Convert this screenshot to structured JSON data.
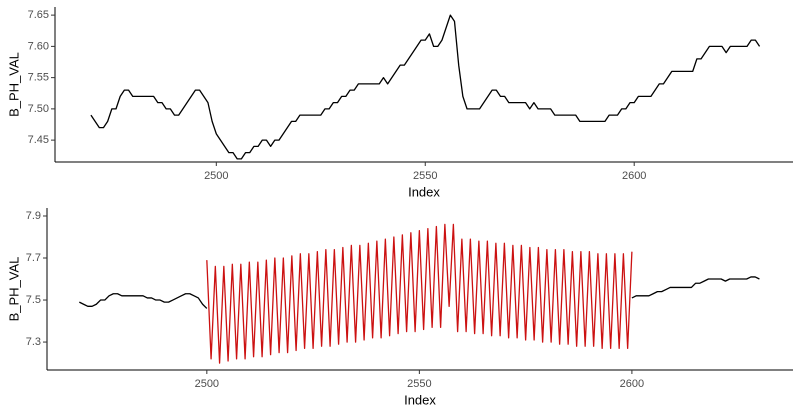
{
  "chart_data": [
    {
      "type": "line",
      "x_label": "Index",
      "y_label": "B_PH_VAL",
      "x": [
        2470,
        2471,
        2472,
        2473,
        2474,
        2475,
        2476,
        2477,
        2478,
        2479,
        2480,
        2481,
        2482,
        2483,
        2484,
        2485,
        2486,
        2487,
        2488,
        2489,
        2490,
        2491,
        2492,
        2493,
        2494,
        2495,
        2496,
        2497,
        2498,
        2499,
        2500,
        2501,
        2502,
        2503,
        2504,
        2505,
        2506,
        2507,
        2508,
        2509,
        2510,
        2511,
        2512,
        2513,
        2514,
        2515,
        2516,
        2517,
        2518,
        2519,
        2520,
        2521,
        2522,
        2523,
        2524,
        2525,
        2526,
        2527,
        2528,
        2529,
        2530,
        2531,
        2532,
        2533,
        2534,
        2535,
        2536,
        2537,
        2538,
        2539,
        2540,
        2541,
        2542,
        2543,
        2544,
        2545,
        2546,
        2547,
        2548,
        2549,
        2550,
        2551,
        2552,
        2553,
        2554,
        2555,
        2556,
        2557,
        2558,
        2559,
        2560,
        2561,
        2562,
        2563,
        2564,
        2565,
        2566,
        2567,
        2568,
        2569,
        2570,
        2571,
        2572,
        2573,
        2574,
        2575,
        2576,
        2577,
        2578,
        2579,
        2580,
        2581,
        2582,
        2583,
        2584,
        2585,
        2586,
        2587,
        2588,
        2589,
        2590,
        2591,
        2592,
        2593,
        2594,
        2595,
        2596,
        2597,
        2598,
        2599,
        2600,
        2601,
        2602,
        2603,
        2604,
        2605,
        2606,
        2607,
        2608,
        2609,
        2610,
        2611,
        2612,
        2613,
        2614,
        2615,
        2616,
        2617,
        2618,
        2619,
        2620,
        2621,
        2622,
        2623,
        2624,
        2625,
        2626,
        2627,
        2628,
        2629,
        2630
      ],
      "series": [
        {
          "color": "#000000",
          "values": [
            7.49,
            7.48,
            7.47,
            7.47,
            7.48,
            7.5,
            7.5,
            7.52,
            7.53,
            7.53,
            7.52,
            7.52,
            7.52,
            7.52,
            7.52,
            7.52,
            7.51,
            7.51,
            7.5,
            7.5,
            7.49,
            7.49,
            7.5,
            7.51,
            7.52,
            7.53,
            7.53,
            7.52,
            7.51,
            7.48,
            7.46,
            7.45,
            7.44,
            7.43,
            7.43,
            7.42,
            7.42,
            7.43,
            7.43,
            7.44,
            7.44,
            7.45,
            7.45,
            7.44,
            7.45,
            7.45,
            7.46,
            7.47,
            7.48,
            7.48,
            7.49,
            7.49,
            7.49,
            7.49,
            7.49,
            7.49,
            7.5,
            7.5,
            7.51,
            7.51,
            7.52,
            7.52,
            7.53,
            7.53,
            7.54,
            7.54,
            7.54,
            7.54,
            7.54,
            7.54,
            7.55,
            7.54,
            7.55,
            7.56,
            7.57,
            7.57,
            7.58,
            7.59,
            7.6,
            7.61,
            7.61,
            7.62,
            7.6,
            7.6,
            7.61,
            7.63,
            7.65,
            7.64,
            7.57,
            7.52,
            7.5,
            7.5,
            7.5,
            7.5,
            7.51,
            7.52,
            7.53,
            7.53,
            7.52,
            7.52,
            7.51,
            7.51,
            7.51,
            7.51,
            7.51,
            7.5,
            7.51,
            7.5,
            7.5,
            7.5,
            7.5,
            7.49,
            7.49,
            7.49,
            7.49,
            7.49,
            7.49,
            7.48,
            7.48,
            7.48,
            7.48,
            7.48,
            7.48,
            7.48,
            7.49,
            7.49,
            7.49,
            7.5,
            7.5,
            7.51,
            7.51,
            7.52,
            7.52,
            7.52,
            7.52,
            7.53,
            7.54,
            7.54,
            7.55,
            7.56,
            7.56,
            7.56,
            7.56,
            7.56,
            7.56,
            7.58,
            7.58,
            7.59,
            7.6,
            7.6,
            7.6,
            7.6,
            7.59,
            7.6,
            7.6,
            7.6,
            7.6,
            7.6,
            7.61,
            7.61,
            7.6
          ]
        }
      ],
      "xlim": [
        2461.4,
        2638
      ],
      "xticks": [
        2500,
        2550,
        2600
      ],
      "ylim": [
        7.415,
        7.663
      ],
      "yticks": [
        7.45,
        {
          "value": 7.5,
          "label": "7.50"
        },
        7.55,
        {
          "value": 7.6,
          "label": "7.60"
        },
        7.65
      ]
    },
    {
      "type": "line",
      "x_label": "Index",
      "y_label": "B_PH_VAL",
      "x": [
        2470,
        2471,
        2472,
        2473,
        2474,
        2475,
        2476,
        2477,
        2478,
        2479,
        2480,
        2481,
        2482,
        2483,
        2484,
        2485,
        2486,
        2487,
        2488,
        2489,
        2490,
        2491,
        2492,
        2493,
        2494,
        2495,
        2496,
        2497,
        2498,
        2499,
        2500,
        2501,
        2502,
        2503,
        2504,
        2505,
        2506,
        2507,
        2508,
        2509,
        2510,
        2511,
        2512,
        2513,
        2514,
        2515,
        2516,
        2517,
        2518,
        2519,
        2520,
        2521,
        2522,
        2523,
        2524,
        2525,
        2526,
        2527,
        2528,
        2529,
        2530,
        2531,
        2532,
        2533,
        2534,
        2535,
        2536,
        2537,
        2538,
        2539,
        2540,
        2541,
        2542,
        2543,
        2544,
        2545,
        2546,
        2547,
        2548,
        2549,
        2550,
        2551,
        2552,
        2553,
        2554,
        2555,
        2556,
        2557,
        2558,
        2559,
        2560,
        2561,
        2562,
        2563,
        2564,
        2565,
        2566,
        2567,
        2568,
        2569,
        2570,
        2571,
        2572,
        2573,
        2574,
        2575,
        2576,
        2577,
        2578,
        2579,
        2580,
        2581,
        2582,
        2583,
        2584,
        2585,
        2586,
        2587,
        2588,
        2589,
        2590,
        2591,
        2592,
        2593,
        2594,
        2595,
        2596,
        2597,
        2598,
        2599,
        2600,
        2601,
        2602,
        2603,
        2604,
        2605,
        2606,
        2607,
        2608,
        2609,
        2610,
        2611,
        2612,
        2613,
        2614,
        2615,
        2616,
        2617,
        2618,
        2619,
        2620,
        2621,
        2622,
        2623,
        2624,
        2625,
        2626,
        2627,
        2628,
        2629,
        2630
      ],
      "series": [
        {
          "color": "#000000",
          "values": [
            7.49,
            7.48,
            7.47,
            7.47,
            7.48,
            7.5,
            7.5,
            7.52,
            7.53,
            7.53,
            7.52,
            7.52,
            7.52,
            7.52,
            7.52,
            7.52,
            7.51,
            7.51,
            7.5,
            7.5,
            7.49,
            7.49,
            7.5,
            7.51,
            7.52,
            7.53,
            7.53,
            7.52,
            7.51,
            7.48,
            7.46,
            null,
            null,
            null,
            null,
            null,
            null,
            null,
            null,
            null,
            null,
            null,
            null,
            null,
            null,
            null,
            null,
            null,
            null,
            null,
            null,
            null,
            null,
            null,
            null,
            null,
            null,
            null,
            null,
            null,
            null,
            null,
            null,
            null,
            null,
            null,
            null,
            null,
            null,
            null,
            null,
            null,
            null,
            null,
            null,
            null,
            null,
            null,
            null,
            null,
            null,
            null,
            null,
            null,
            null,
            null,
            null,
            null,
            null,
            null,
            null,
            null,
            null,
            null,
            null,
            null,
            null,
            null,
            null,
            null,
            null,
            null,
            null,
            null,
            null,
            null,
            null,
            null,
            null,
            null,
            null,
            null,
            null,
            null,
            null,
            null,
            null,
            null,
            null,
            null,
            null,
            null,
            null,
            null,
            null,
            null,
            null,
            null,
            null,
            null,
            7.51,
            7.52,
            7.52,
            7.52,
            7.52,
            7.53,
            7.54,
            7.54,
            7.55,
            7.56,
            7.56,
            7.56,
            7.56,
            7.56,
            7.56,
            7.58,
            7.58,
            7.59,
            7.6,
            7.6,
            7.6,
            7.6,
            7.59,
            7.6,
            7.6,
            7.6,
            7.6,
            7.6,
            7.61,
            7.61,
            7.6
          ]
        },
        {
          "color": "#cc1111",
          "values": [
            null,
            null,
            null,
            null,
            null,
            null,
            null,
            null,
            null,
            null,
            null,
            null,
            null,
            null,
            null,
            null,
            null,
            null,
            null,
            null,
            null,
            null,
            null,
            null,
            null,
            null,
            null,
            null,
            null,
            null,
            7.69,
            7.22,
            7.66,
            7.2,
            7.66,
            7.21,
            7.67,
            7.22,
            7.67,
            7.22,
            7.68,
            7.23,
            7.68,
            7.23,
            7.69,
            7.24,
            7.7,
            7.25,
            7.7,
            7.25,
            7.71,
            7.26,
            7.72,
            7.27,
            7.72,
            7.27,
            7.73,
            7.28,
            7.74,
            7.28,
            7.74,
            7.29,
            7.75,
            7.3,
            7.76,
            7.3,
            7.76,
            7.31,
            7.77,
            7.32,
            7.78,
            7.32,
            7.79,
            7.33,
            7.8,
            7.34,
            7.81,
            7.35,
            7.82,
            7.35,
            7.83,
            7.36,
            7.84,
            7.37,
            7.85,
            7.37,
            7.86,
            7.47,
            7.86,
            7.35,
            7.79,
            7.35,
            7.79,
            7.34,
            7.78,
            7.34,
            7.78,
            7.33,
            7.77,
            7.33,
            7.77,
            7.32,
            7.76,
            7.32,
            7.76,
            7.31,
            7.75,
            7.31,
            7.75,
            7.3,
            7.74,
            7.3,
            7.74,
            7.29,
            7.74,
            7.29,
            7.73,
            7.28,
            7.73,
            7.28,
            7.73,
            7.28,
            7.72,
            7.27,
            7.72,
            7.27,
            7.72,
            7.27,
            7.72,
            7.27,
            7.73,
            null,
            null,
            null,
            null,
            null,
            null,
            null,
            null,
            null,
            null,
            null,
            null,
            null,
            null,
            null,
            null,
            null,
            null,
            null,
            null,
            null,
            null,
            null,
            null,
            null,
            null,
            null,
            null,
            null,
            null
          ]
        }
      ],
      "xlim": [
        2462.4,
        2637.9
      ],
      "xticks": [
        2500,
        2550,
        2600
      ],
      "ylim": [
        7.167,
        7.938
      ],
      "yticks": [
        7.3,
        7.5,
        7.7,
        7.9
      ]
    }
  ]
}
